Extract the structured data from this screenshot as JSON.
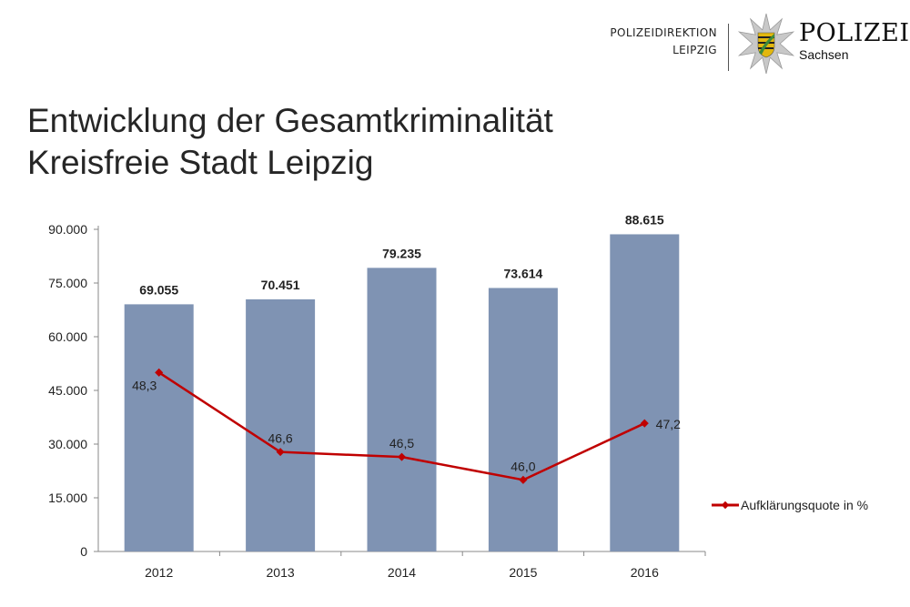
{
  "header": {
    "org_line1": "POLIZEIDIREKTION",
    "org_line2": "LEIPZIG",
    "brand_name": "POLIZEI",
    "brand_sub": "Sachsen",
    "star_color": "#c8c8c8",
    "crest_yellow": "#e2b70e",
    "crest_green": "#3e8a3a"
  },
  "title": {
    "line1": "Entwicklung der Gesamtkriminalität",
    "line2": "Kreisfreie Stadt Leipzig"
  },
  "chart_data": {
    "type": "bar",
    "categories": [
      "2012",
      "2013",
      "2014",
      "2015",
      "2016"
    ],
    "series": [
      {
        "name": "Gesamtkriminalität",
        "kind": "bar",
        "values": [
          69055,
          70451,
          79235,
          73614,
          88615
        ],
        "labels": [
          "69.055",
          "70.451",
          "79.235",
          "73.614",
          "88.615"
        ],
        "color": "#7f93b3"
      },
      {
        "name": "Aufklärungsquote in %",
        "kind": "line",
        "values": [
          48.3,
          46.6,
          46.5,
          46.0,
          47.2
        ],
        "labels": [
          "48,3",
          "46,6",
          "46,5",
          "46,0",
          "47,2"
        ],
        "plotted_at": [
          50000,
          27800,
          26400,
          20000,
          35800
        ],
        "color": "#c00000"
      }
    ],
    "ylim": [
      0,
      90000
    ],
    "yticks": [
      0,
      15000,
      30000,
      45000,
      60000,
      75000,
      90000
    ],
    "ytick_labels": [
      "0",
      "15.000",
      "30.000",
      "45.000",
      "60.000",
      "75.000",
      "90.000"
    ],
    "legend": [
      "Aufklärungsquote in %"
    ],
    "legend_position": "right",
    "grid": false,
    "title": "",
    "xlabel": "",
    "ylabel": ""
  }
}
